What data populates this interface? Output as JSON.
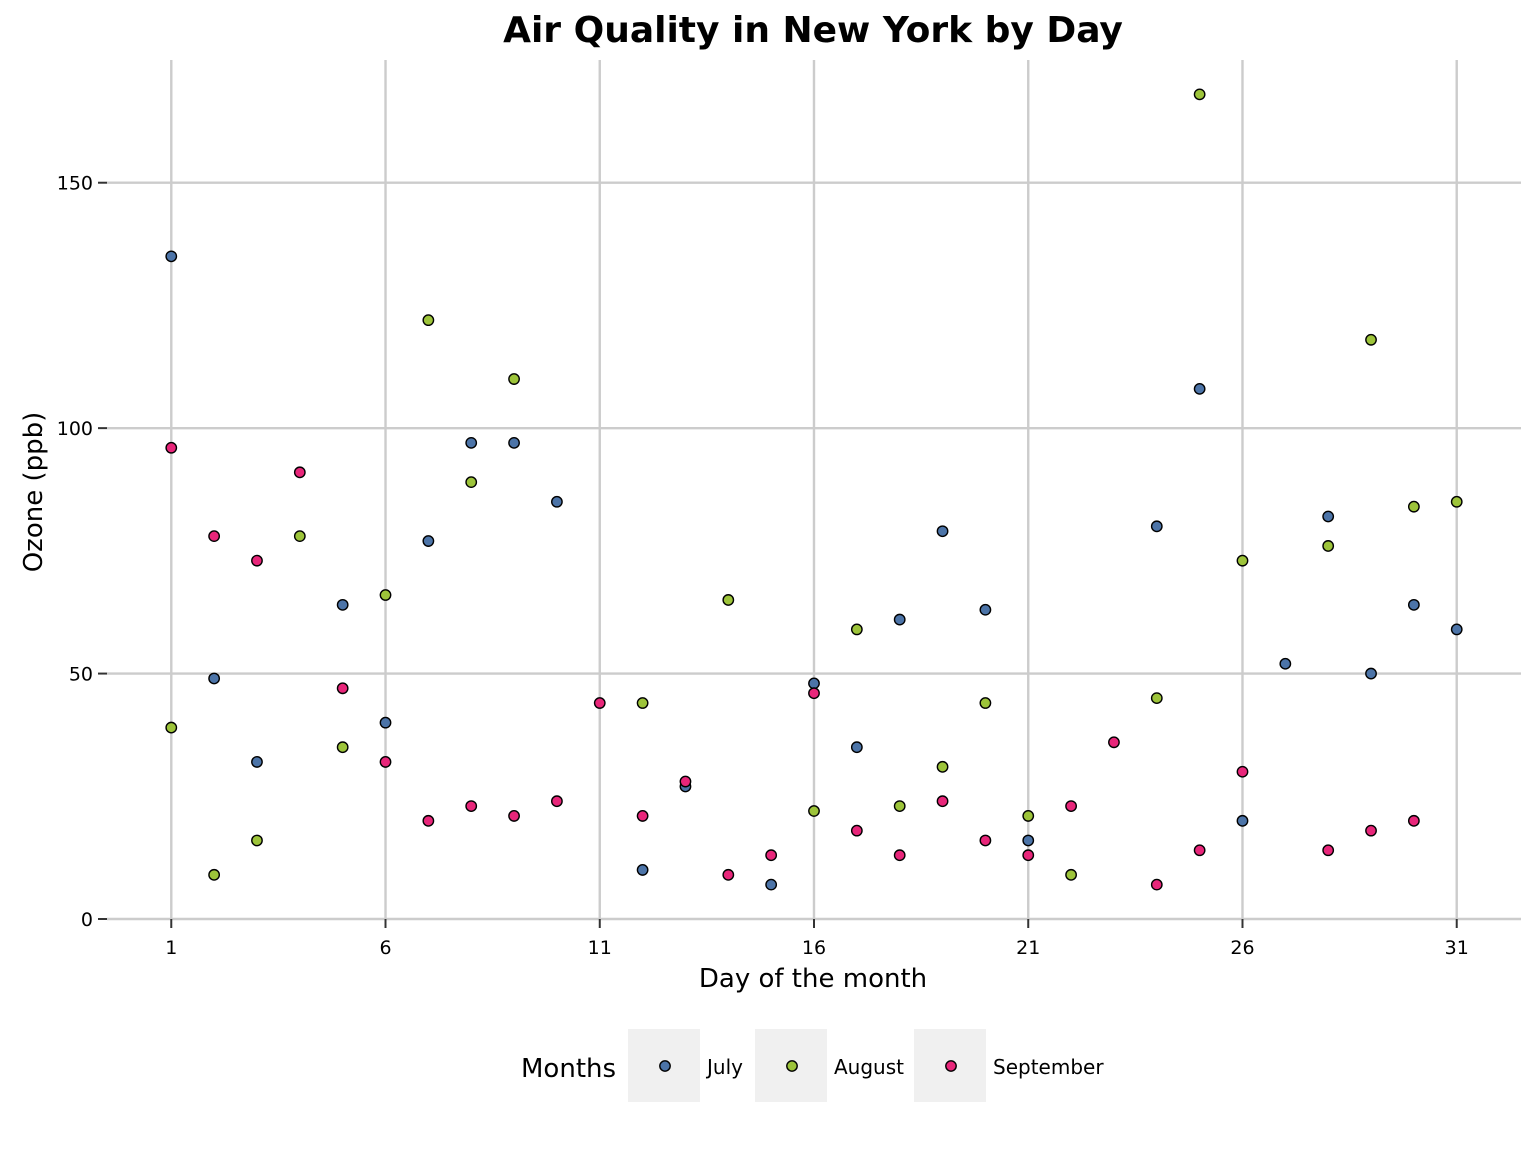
{
  "chart_data": {
    "type": "scatter",
    "title": "Air Quality in New York by Day",
    "xlabel": "Day of the month",
    "ylabel": "Ozone (ppb)",
    "xlim": [
      -0.5,
      32.5
    ],
    "ylim": [
      0,
      175
    ],
    "xticks": [
      1,
      6,
      11,
      16,
      21,
      26,
      31
    ],
    "yticks": [
      0,
      50,
      100,
      150
    ],
    "grid": true,
    "legend": {
      "title": "Months",
      "position": "bottom"
    },
    "series": [
      {
        "name": "July",
        "color": "#4c74a8",
        "points": [
          [
            1,
            135
          ],
          [
            2,
            49
          ],
          [
            3,
            32
          ],
          [
            5,
            64
          ],
          [
            6,
            40
          ],
          [
            7,
            77
          ],
          [
            8,
            97
          ],
          [
            9,
            97
          ],
          [
            10,
            85
          ],
          [
            12,
            10
          ],
          [
            13,
            27
          ],
          [
            15,
            7
          ],
          [
            16,
            48
          ],
          [
            17,
            35
          ],
          [
            18,
            61
          ],
          [
            19,
            79
          ],
          [
            20,
            63
          ],
          [
            21,
            16
          ],
          [
            24,
            80
          ],
          [
            25,
            108
          ],
          [
            26,
            20
          ],
          [
            27,
            52
          ],
          [
            28,
            82
          ],
          [
            29,
            50
          ],
          [
            30,
            64
          ],
          [
            31,
            59
          ]
        ]
      },
      {
        "name": "August",
        "color": "#9dc43a",
        "points": [
          [
            1,
            39
          ],
          [
            2,
            9
          ],
          [
            3,
            16
          ],
          [
            4,
            78
          ],
          [
            5,
            35
          ],
          [
            6,
            66
          ],
          [
            7,
            122
          ],
          [
            8,
            89
          ],
          [
            9,
            110
          ],
          [
            12,
            44
          ],
          [
            14,
            65
          ],
          [
            16,
            22
          ],
          [
            17,
            59
          ],
          [
            18,
            23
          ],
          [
            19,
            31
          ],
          [
            20,
            44
          ],
          [
            21,
            21
          ],
          [
            22,
            9
          ],
          [
            24,
            45
          ],
          [
            25,
            168
          ],
          [
            26,
            73
          ],
          [
            28,
            76
          ],
          [
            29,
            118
          ],
          [
            30,
            84
          ],
          [
            31,
            85
          ]
        ]
      },
      {
        "name": "September",
        "color": "#e8267a",
        "points": [
          [
            1,
            96
          ],
          [
            2,
            78
          ],
          [
            3,
            73
          ],
          [
            4,
            91
          ],
          [
            5,
            47
          ],
          [
            6,
            32
          ],
          [
            7,
            20
          ],
          [
            8,
            23
          ],
          [
            9,
            21
          ],
          [
            10,
            24
          ],
          [
            11,
            44
          ],
          [
            12,
            21
          ],
          [
            13,
            28
          ],
          [
            14,
            9
          ],
          [
            15,
            13
          ],
          [
            16,
            46
          ],
          [
            17,
            18
          ],
          [
            18,
            13
          ],
          [
            19,
            24
          ],
          [
            20,
            16
          ],
          [
            21,
            13
          ],
          [
            22,
            23
          ],
          [
            23,
            36
          ],
          [
            24,
            7
          ],
          [
            25,
            14
          ],
          [
            26,
            30
          ],
          [
            28,
            14
          ],
          [
            29,
            18
          ],
          [
            30,
            20
          ]
        ]
      }
    ]
  }
}
